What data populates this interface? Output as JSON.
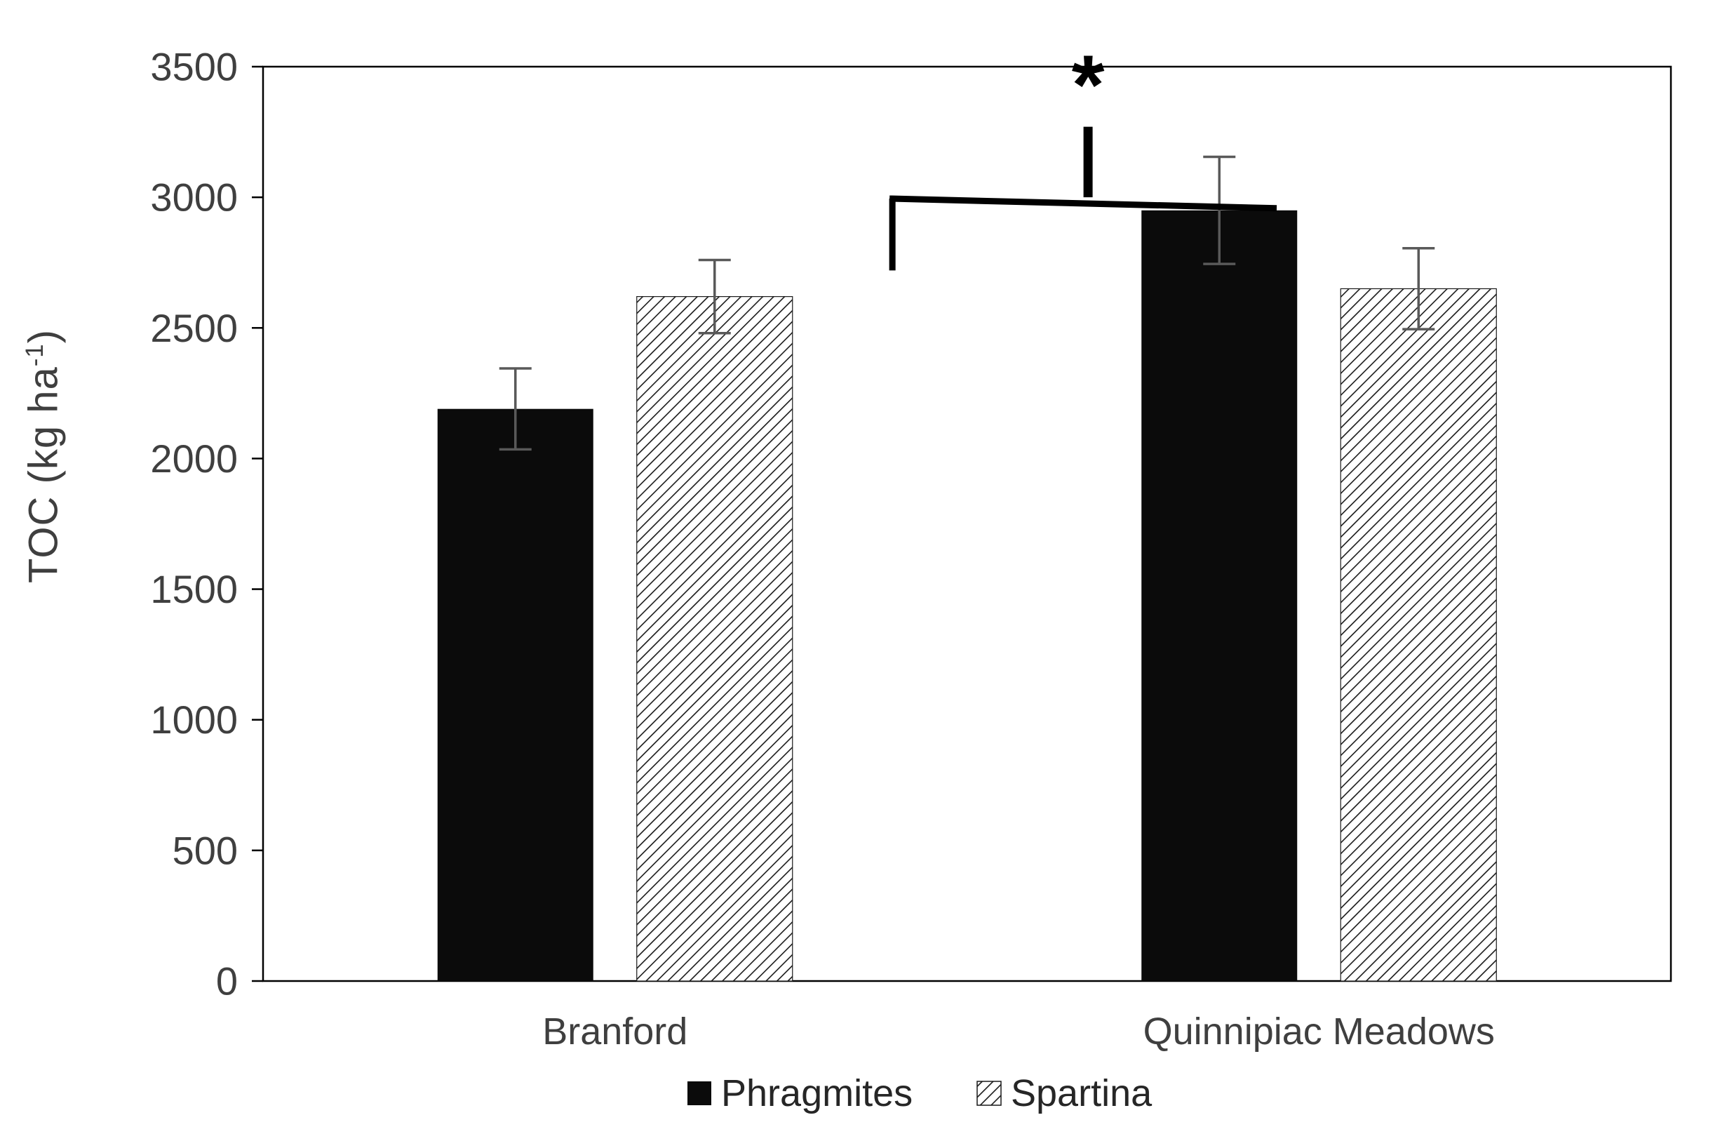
{
  "chart_data": {
    "type": "bar",
    "title": "",
    "ylabel": {
      "prefix": "TOC (kg ha",
      "sup": "-1",
      "suffix": ")"
    },
    "categories": [
      "Branford",
      "Quinnipiac Meadows"
    ],
    "series": [
      {
        "name": "Phragmites",
        "pattern": "solid",
        "color": "#0b0b0b",
        "values": [
          2190,
          2950
        ],
        "errors": [
          155,
          205
        ]
      },
      {
        "name": "Spartina",
        "pattern": "diagonal-hatch",
        "color": "#1a1a1a",
        "values": [
          2620,
          2650
        ],
        "errors": [
          140,
          155
        ]
      }
    ],
    "ylim": [
      0,
      3500
    ],
    "ytick_step": 500,
    "ytick_labels": [
      "0",
      "500",
      "1000",
      "1500",
      "2000",
      "2500",
      "3000",
      "3500"
    ],
    "grid": false,
    "legend_position": "bottom",
    "annotation": {
      "symbol": "*",
      "significance_bracket": {
        "x_start_frac": 0.447,
        "x_end_frac": 0.72,
        "x_symbol_frac": 0.586,
        "y_line": 2995,
        "y_line_right": 2958,
        "y_left_drop": 2720,
        "y_stem_top": 3270,
        "y_stem_bottom": 3000,
        "y_symbol": 3430
      }
    }
  },
  "colors": {
    "background": "#ffffff",
    "axis_text": "#3f3f3f",
    "axis_line": "#000000",
    "error_bar": "#595959",
    "bar_solid": "#0b0b0b",
    "hatch_line": "#1a1a1a",
    "legend_text": "#262626",
    "annotation_color": "#000000"
  }
}
